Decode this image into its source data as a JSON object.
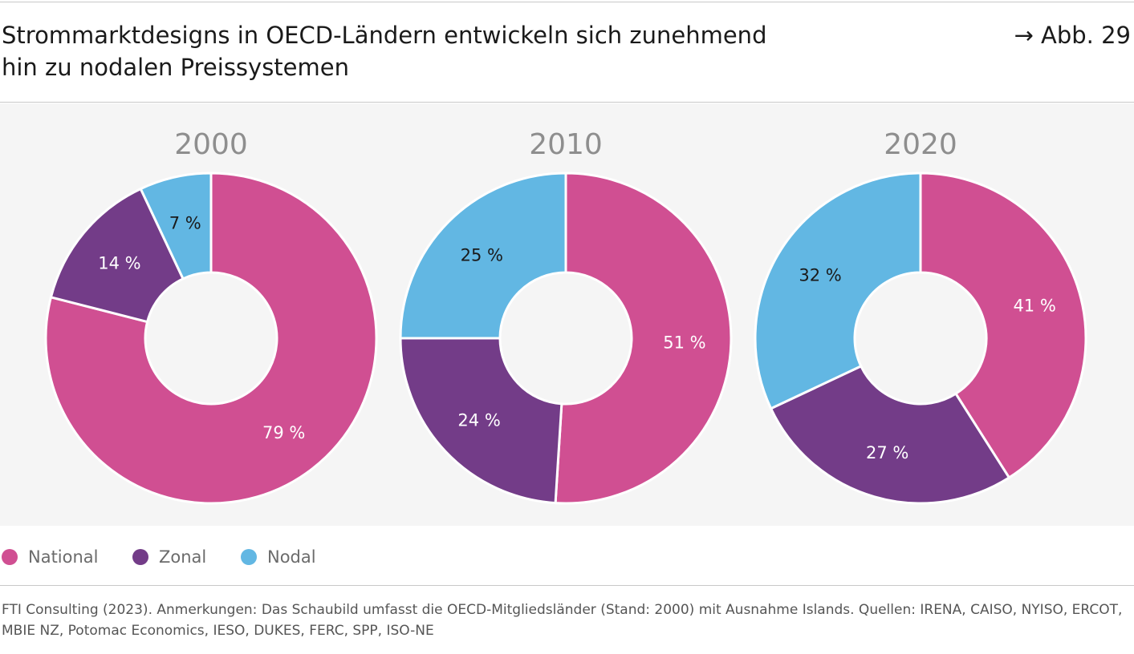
{
  "header": {
    "title_line1": "Strommarktdesigns in OECD-Ländern entwickeln sich zunehmend",
    "title_line2": "hin zu nodalen Preissystemen",
    "figure_ref": "→ Abb. 29"
  },
  "chart_data": [
    {
      "type": "pie",
      "title": "2000",
      "categories": [
        "National",
        "Zonal",
        "Nodal"
      ],
      "values": [
        79,
        14,
        7
      ],
      "labels": [
        "79 %",
        "14 %",
        "7 %"
      ],
      "order": "clockwise from 12 o'clock"
    },
    {
      "type": "pie",
      "title": "2010",
      "categories": [
        "National",
        "Zonal",
        "Nodal"
      ],
      "values": [
        51,
        24,
        25
      ],
      "labels": [
        "51 %",
        "24 %",
        "25 %"
      ],
      "order": "clockwise from 12 o'clock"
    },
    {
      "type": "pie",
      "title": "2020",
      "categories": [
        "National",
        "Zonal",
        "Nodal"
      ],
      "values": [
        41,
        27,
        32
      ],
      "labels": [
        "41 %",
        "27 %",
        "32 %"
      ],
      "order": "clockwise from 12 o'clock"
    }
  ],
  "legend": {
    "items": [
      {
        "label": "National",
        "color": "#d04f92"
      },
      {
        "label": "Zonal",
        "color": "#733c88"
      },
      {
        "label": "Nodal",
        "color": "#62b7e3"
      }
    ]
  },
  "colors": {
    "year_label": "#8e8e8e",
    "label_on_dark": "#ffffff",
    "label_on_light": "#1a1a1a"
  },
  "footnote": {
    "text": "FTI Consulting (2023). Anmerkungen: Das Schaubild umfasst die OECD-Mitgliedsländer (Stand: 2000) mit Ausnahme Islands. Quellen: IRENA, CAISO, NYISO, ERCOT, MBIE NZ, Potomac Economics, IESO, DUKES, FERC, SPP, ISO-NE"
  }
}
